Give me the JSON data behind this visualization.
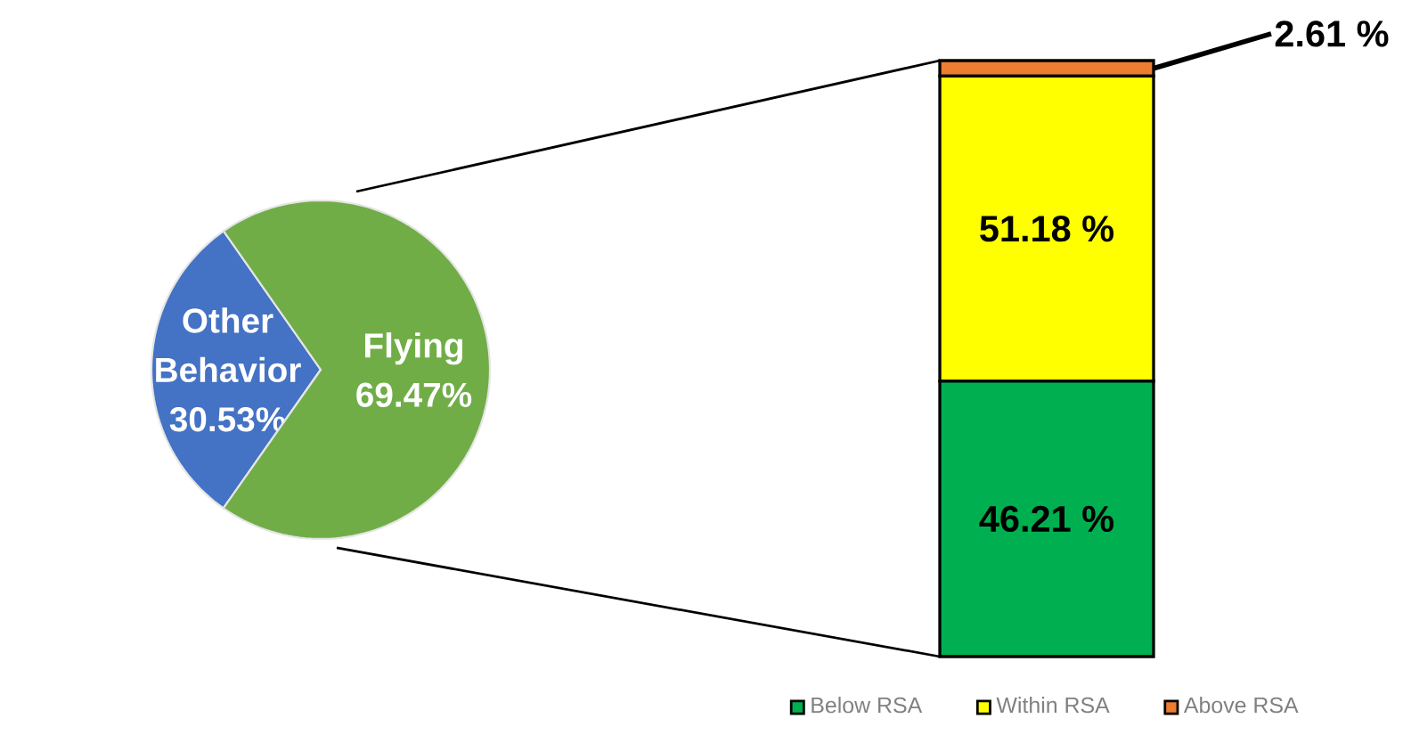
{
  "chart_data": [
    {
      "type": "pie",
      "categories": [
        "Other Behavior",
        "Flying"
      ],
      "values": [
        30.53,
        69.47
      ],
      "colors": [
        "#4472c4",
        "#70ad47"
      ],
      "value_labels": [
        "30.53%",
        "69.47%"
      ]
    },
    {
      "type": "bar",
      "stacked": true,
      "categories": [
        null
      ],
      "legend": "bottom",
      "series": [
        {
          "name": "Below RSA",
          "color": "#00b050",
          "values": [
            46.21
          ],
          "value_labels": [
            "46.21 %"
          ]
        },
        {
          "name": "Within RSA",
          "color": "#ffff00",
          "values": [
            51.18
          ],
          "value_labels": [
            "51.18 %"
          ]
        },
        {
          "name": "Above RSA",
          "color": "#ed7d31",
          "values": [
            2.61
          ],
          "value_labels": [
            "2.61 %"
          ]
        }
      ]
    }
  ]
}
